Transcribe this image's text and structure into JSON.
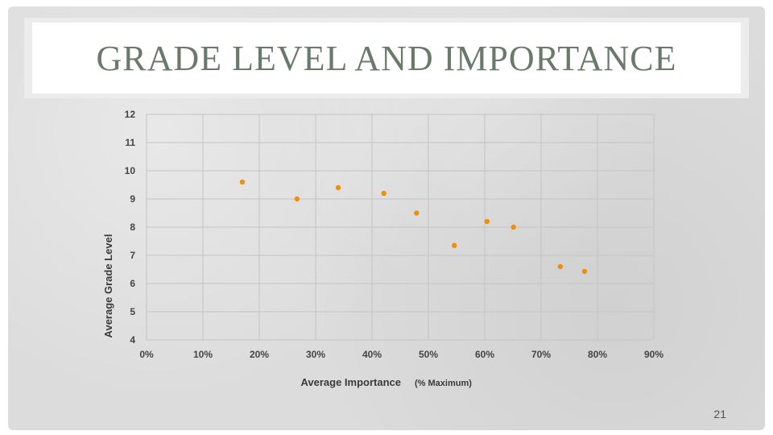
{
  "slide": {
    "title": "GRADE LEVEL AND IMPORTANCE",
    "page_number": "21"
  },
  "chart_data": {
    "type": "scatter",
    "title": "",
    "xlabel": "Average Importance",
    "xlabel_note": "(% Maximum)",
    "ylabel": "Average Grade Level",
    "xlim": [
      0,
      0.9
    ],
    "ylim": [
      4,
      12
    ],
    "x_ticks": [
      0,
      0.1,
      0.2,
      0.3,
      0.4,
      0.5,
      0.6,
      0.7,
      0.8,
      0.9
    ],
    "x_tick_labels": [
      "0%",
      "10%",
      "20%",
      "30%",
      "40%",
      "50%",
      "60%",
      "70%",
      "80%",
      "90%"
    ],
    "y_ticks": [
      4,
      5,
      6,
      7,
      8,
      9,
      10,
      11,
      12
    ],
    "y_tick_labels": [
      "4",
      "5",
      "6",
      "7",
      "8",
      "9",
      "10",
      "11",
      "12"
    ],
    "grid": true,
    "marker_color": "#f0900a",
    "points": [
      {
        "x": 0.17,
        "y": 9.6
      },
      {
        "x": 0.267,
        "y": 9.0
      },
      {
        "x": 0.34,
        "y": 9.4
      },
      {
        "x": 0.421,
        "y": 9.2
      },
      {
        "x": 0.479,
        "y": 8.5
      },
      {
        "x": 0.546,
        "y": 7.35
      },
      {
        "x": 0.604,
        "y": 8.2
      },
      {
        "x": 0.651,
        "y": 8.0
      },
      {
        "x": 0.734,
        "y": 6.6
      },
      {
        "x": 0.777,
        "y": 6.43
      }
    ]
  }
}
